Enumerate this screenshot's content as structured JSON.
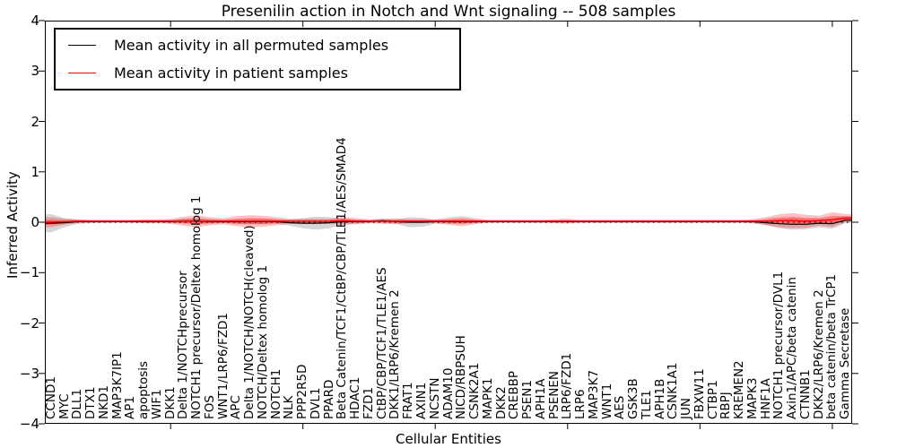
{
  "chart_data": {
    "type": "line",
    "title": "Presenilin action in Notch and Wnt signaling -- 508 samples",
    "xlabel": "Cellular Entities",
    "ylabel": "Inferred Activity",
    "ylim": [
      -4,
      4
    ],
    "yticks": [
      -4,
      -3,
      -2,
      -1,
      0,
      1,
      2,
      3,
      4
    ],
    "xtick_positions": [
      10,
      20,
      30,
      40,
      50,
      60
    ],
    "grid": false,
    "legend_position": "upper left",
    "zero_line": {
      "y": 0,
      "style": "dotted",
      "color": "#000000"
    },
    "style": {
      "permuted_band_color": "rgba(0,0,0,0.16)",
      "patient_band_color": "rgba(255,0,0,0.24)",
      "patient_band_core_color": "rgba(255,0,0,0.35)",
      "axis_color": "#000000"
    },
    "entities": [
      "CCND1",
      "MYC",
      "DLL1",
      "DTX1",
      "NKD1",
      "MAP3K7IP1",
      "AP1",
      "apoptosis",
      "WIF1",
      "DKK1",
      "Delta 1/NOTCHprecursor",
      "NOTCH1 precursor/Deltex homolog 1",
      "FOS",
      "WNT1/LRP6/FZD1",
      "APC",
      "Delta 1/NOTCH/NOTCH(cleaved)",
      "NOTCH/Deltex homolog 1",
      "NOTCH1",
      "NLK",
      "PPP2R5D",
      "DVL1",
      "PPARD",
      "Beta Catenin/TCF1/CtBP/CBP/TLE1/AES/SMAD4",
      "HDAC1",
      "FZD1",
      "CtBP/CBP/TCF1/TLE1/AES",
      "DKK1/LRP6/Kremen 2",
      "FRAT1",
      "AXIN1",
      "NCSTN",
      "ADAM10",
      "NICD/RBPSUH",
      "CSNK2A1",
      "MAPK1",
      "DKK2",
      "CREBBP",
      "PSEN1",
      "APH1A",
      "PSENEN",
      "LRP6/FZD1",
      "LRP6",
      "MAP3K7",
      "WNT1",
      "AES",
      "GSK3B",
      "TLE1",
      "APH1B",
      "CSNK1A1",
      "JUN",
      "FBXW11",
      "CTBP1",
      "RBPJ",
      "KREMEN2",
      "MAPK3",
      "HNF1A",
      "NOTCH1 precursor/DVL1",
      "Axin1/APC/beta catenin",
      "CTNNB1",
      "DKK2/LRP6/Kremen 2",
      "beta catenin/beta TrCP1",
      "Gamma Secretase"
    ],
    "series": [
      {
        "name": "Mean activity in all permuted samples",
        "color": "#000000",
        "mean": [
          -0.02,
          -0.01,
          0.01,
          0.01,
          0.01,
          0.01,
          0.01,
          0.01,
          0.01,
          0.01,
          0.02,
          0.02,
          0.01,
          0.01,
          0.01,
          0.01,
          0.01,
          0.01,
          -0.01,
          -0.02,
          -0.02,
          -0.01,
          0.01,
          0.01,
          0.01,
          0.03,
          0.01,
          0.0,
          0.0,
          0.01,
          0.01,
          0.01,
          0.01,
          0.01,
          0.01,
          0.01,
          0.01,
          0.01,
          0.01,
          0.01,
          0.01,
          0.01,
          0.01,
          0.01,
          0.01,
          0.01,
          0.01,
          0.01,
          0.01,
          0.01,
          0.01,
          0.01,
          0.01,
          0.01,
          -0.01,
          -0.03,
          -0.04,
          -0.04,
          -0.02,
          -0.03,
          0.04
        ],
        "std": [
          0.18,
          0.09,
          0.04,
          0.03,
          0.02,
          0.02,
          0.02,
          0.03,
          0.03,
          0.03,
          0.04,
          0.05,
          0.04,
          0.03,
          0.04,
          0.05,
          0.05,
          0.04,
          0.06,
          0.1,
          0.13,
          0.11,
          0.06,
          0.04,
          0.03,
          0.04,
          0.04,
          0.1,
          0.09,
          0.04,
          0.04,
          0.04,
          0.03,
          0.02,
          0.02,
          0.02,
          0.02,
          0.02,
          0.02,
          0.02,
          0.02,
          0.02,
          0.02,
          0.02,
          0.02,
          0.02,
          0.02,
          0.02,
          0.02,
          0.02,
          0.02,
          0.02,
          0.02,
          0.03,
          0.05,
          0.09,
          0.11,
          0.1,
          0.08,
          0.1,
          0.06
        ]
      },
      {
        "name": "Mean activity in patient samples",
        "color": "#ff0000",
        "mean": [
          0.0,
          0.01,
          0.02,
          0.02,
          0.02,
          0.02,
          0.02,
          0.02,
          0.02,
          0.02,
          0.02,
          0.02,
          0.02,
          0.02,
          0.02,
          0.02,
          0.02,
          0.02,
          0.02,
          0.02,
          0.02,
          0.02,
          0.03,
          0.02,
          0.02,
          0.02,
          0.02,
          0.02,
          0.02,
          0.02,
          0.02,
          0.02,
          0.02,
          0.02,
          0.02,
          0.02,
          0.02,
          0.02,
          0.02,
          0.02,
          0.02,
          0.02,
          0.02,
          0.02,
          0.02,
          0.02,
          0.02,
          0.02,
          0.02,
          0.02,
          0.02,
          0.02,
          0.02,
          0.02,
          0.02,
          0.03,
          0.03,
          0.02,
          0.03,
          0.05,
          0.08
        ],
        "std": [
          0.1,
          0.06,
          0.04,
          0.03,
          0.03,
          0.03,
          0.03,
          0.04,
          0.04,
          0.05,
          0.09,
          0.12,
          0.08,
          0.06,
          0.1,
          0.12,
          0.11,
          0.08,
          0.05,
          0.05,
          0.05,
          0.05,
          0.08,
          0.06,
          0.04,
          0.05,
          0.06,
          0.04,
          0.04,
          0.04,
          0.07,
          0.1,
          0.06,
          0.03,
          0.03,
          0.03,
          0.03,
          0.03,
          0.04,
          0.05,
          0.03,
          0.03,
          0.03,
          0.03,
          0.03,
          0.03,
          0.03,
          0.03,
          0.03,
          0.03,
          0.03,
          0.03,
          0.03,
          0.04,
          0.08,
          0.13,
          0.15,
          0.13,
          0.1,
          0.15,
          0.08
        ]
      }
    ]
  }
}
